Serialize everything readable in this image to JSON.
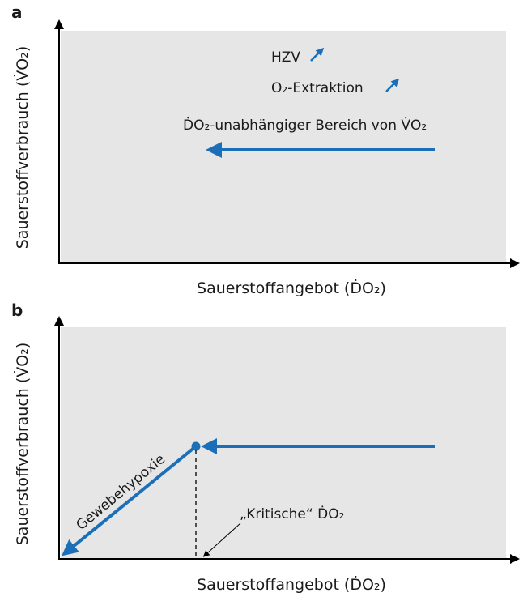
{
  "panels": [
    {
      "label": "a",
      "y_axis_label": "Sauerstoffverbrauch (V̇O₂)",
      "x_axis_label": "Sauerstoffangebot (ḊO₂)",
      "annotations": [
        "HZV",
        "O₂-Extraktion",
        "ḊO₂-unabhängiger Bereich von V̇O₂"
      ]
    },
    {
      "label": "b",
      "y_axis_label": "Sauerstoffverbrauch (V̇O₂)",
      "x_axis_label": "Sauerstoffangebot (ḊO₂)",
      "annotations": [
        "Gewebehypoxie",
        "„Kritische“ ḊO₂"
      ]
    }
  ]
}
